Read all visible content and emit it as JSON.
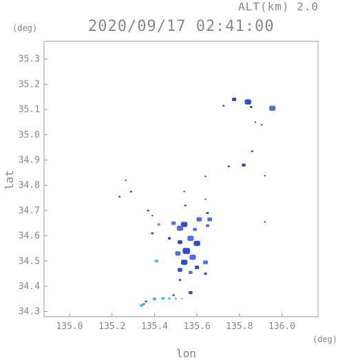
{
  "header": {
    "altitude": "ALT(km) 2.0",
    "timestamp": "2020/09/17 02:41:00"
  },
  "axes": {
    "y_unit": "(deg)",
    "x_unit": "(deg)",
    "x_title": "lon",
    "y_title": "lat"
  },
  "colors": {
    "axis": "#999999",
    "text": "#888888",
    "echo_strong": "#2a4bdb",
    "echo_medium": "#4b6ef5",
    "echo_light": "#6f8cff",
    "echo_cyan": "#28c8f0"
  },
  "chart_data": {
    "type": "scatter",
    "title": "2020/09/17 02:41:00",
    "xlabel": "lon",
    "ylabel": "lat",
    "xlim": [
      134.88,
      136.17
    ],
    "ylim": [
      34.28,
      35.37
    ],
    "x_ticks": [
      "135.0",
      "135.2",
      "135.4",
      "135.6",
      "135.8",
      "136.0"
    ],
    "x_tick_values": [
      135.0,
      135.2,
      135.4,
      135.6,
      135.8,
      136.0
    ],
    "y_ticks": [
      "34.3",
      "34.4",
      "34.5",
      "34.6",
      "34.7",
      "34.8",
      "34.9",
      "35.0",
      "35.1",
      "35.2",
      "35.3"
    ],
    "y_tick_values": [
      34.3,
      34.4,
      34.5,
      34.6,
      34.7,
      34.8,
      34.9,
      35.0,
      35.1,
      35.2,
      35.3
    ],
    "grid": false,
    "echo_cells": [
      {
        "lon": 135.775,
        "lat": 35.14,
        "size": 0.02,
        "color": "echo_strong"
      },
      {
        "lon": 135.84,
        "lat": 35.13,
        "size": 0.03,
        "color": "echo_strong"
      },
      {
        "lon": 135.955,
        "lat": 35.105,
        "size": 0.03,
        "color": "echo_medium"
      },
      {
        "lon": 135.855,
        "lat": 35.11,
        "size": 0.012,
        "color": "echo_strong"
      },
      {
        "lon": 135.725,
        "lat": 35.115,
        "size": 0.01,
        "color": "echo_strong"
      },
      {
        "lon": 135.875,
        "lat": 35.05,
        "size": 0.008,
        "color": "echo_strong"
      },
      {
        "lon": 135.905,
        "lat": 35.04,
        "size": 0.008,
        "color": "echo_strong"
      },
      {
        "lon": 135.86,
        "lat": 34.935,
        "size": 0.01,
        "color": "echo_strong"
      },
      {
        "lon": 135.82,
        "lat": 34.88,
        "size": 0.018,
        "color": "echo_strong"
      },
      {
        "lon": 135.75,
        "lat": 34.875,
        "size": 0.01,
        "color": "echo_strong"
      },
      {
        "lon": 135.92,
        "lat": 34.838,
        "size": 0.008,
        "color": "echo_strong"
      },
      {
        "lon": 135.64,
        "lat": 34.835,
        "size": 0.008,
        "color": "echo_strong"
      },
      {
        "lon": 135.265,
        "lat": 34.82,
        "size": 0.006,
        "color": "echo_strong"
      },
      {
        "lon": 135.29,
        "lat": 34.775,
        "size": 0.01,
        "color": "echo_strong"
      },
      {
        "lon": 135.235,
        "lat": 34.755,
        "size": 0.01,
        "color": "echo_strong"
      },
      {
        "lon": 135.54,
        "lat": 34.775,
        "size": 0.006,
        "color": "echo_strong"
      },
      {
        "lon": 135.64,
        "lat": 34.745,
        "size": 0.006,
        "color": "echo_strong"
      },
      {
        "lon": 135.545,
        "lat": 34.72,
        "size": 0.01,
        "color": "echo_strong"
      },
      {
        "lon": 135.37,
        "lat": 34.7,
        "size": 0.01,
        "color": "echo_strong"
      },
      {
        "lon": 135.65,
        "lat": 34.69,
        "size": 0.012,
        "color": "echo_strong"
      },
      {
        "lon": 135.39,
        "lat": 34.68,
        "size": 0.008,
        "color": "echo_strong"
      },
      {
        "lon": 135.61,
        "lat": 34.665,
        "size": 0.025,
        "color": "echo_medium"
      },
      {
        "lon": 135.66,
        "lat": 34.665,
        "size": 0.022,
        "color": "echo_medium"
      },
      {
        "lon": 135.49,
        "lat": 34.65,
        "size": 0.02,
        "color": "echo_medium"
      },
      {
        "lon": 135.54,
        "lat": 34.645,
        "size": 0.03,
        "color": "echo_strong"
      },
      {
        "lon": 135.52,
        "lat": 34.63,
        "size": 0.03,
        "color": "echo_medium"
      },
      {
        "lon": 135.59,
        "lat": 34.625,
        "size": 0.018,
        "color": "echo_medium"
      },
      {
        "lon": 135.42,
        "lat": 34.645,
        "size": 0.014,
        "color": "echo_light"
      },
      {
        "lon": 135.65,
        "lat": 34.64,
        "size": 0.016,
        "color": "echo_medium"
      },
      {
        "lon": 135.39,
        "lat": 34.61,
        "size": 0.012,
        "color": "echo_strong"
      },
      {
        "lon": 135.47,
        "lat": 34.59,
        "size": 0.014,
        "color": "echo_strong"
      },
      {
        "lon": 135.57,
        "lat": 34.59,
        "size": 0.03,
        "color": "echo_medium"
      },
      {
        "lon": 135.6,
        "lat": 34.57,
        "size": 0.03,
        "color": "echo_strong"
      },
      {
        "lon": 135.52,
        "lat": 34.575,
        "size": 0.022,
        "color": "echo_strong"
      },
      {
        "lon": 135.55,
        "lat": 34.54,
        "size": 0.035,
        "color": "echo_strong"
      },
      {
        "lon": 135.51,
        "lat": 34.53,
        "size": 0.025,
        "color": "echo_medium"
      },
      {
        "lon": 135.58,
        "lat": 34.515,
        "size": 0.03,
        "color": "echo_medium"
      },
      {
        "lon": 135.54,
        "lat": 34.495,
        "size": 0.03,
        "color": "echo_strong"
      },
      {
        "lon": 135.64,
        "lat": 34.495,
        "size": 0.022,
        "color": "echo_medium"
      },
      {
        "lon": 135.6,
        "lat": 34.475,
        "size": 0.02,
        "color": "echo_strong"
      },
      {
        "lon": 135.52,
        "lat": 34.465,
        "size": 0.022,
        "color": "echo_strong"
      },
      {
        "lon": 135.57,
        "lat": 34.455,
        "size": 0.018,
        "color": "echo_medium"
      },
      {
        "lon": 135.41,
        "lat": 34.5,
        "size": 0.016,
        "color": "echo_cyan"
      },
      {
        "lon": 135.64,
        "lat": 34.45,
        "size": 0.014,
        "color": "echo_strong"
      },
      {
        "lon": 135.52,
        "lat": 34.425,
        "size": 0.012,
        "color": "echo_strong"
      },
      {
        "lon": 135.57,
        "lat": 34.375,
        "size": 0.018,
        "color": "echo_strong"
      },
      {
        "lon": 135.49,
        "lat": 34.365,
        "size": 0.012,
        "color": "echo_medium"
      },
      {
        "lon": 135.4,
        "lat": 34.35,
        "size": 0.016,
        "color": "echo_cyan"
      },
      {
        "lon": 135.44,
        "lat": 34.352,
        "size": 0.016,
        "color": "echo_cyan"
      },
      {
        "lon": 135.47,
        "lat": 34.352,
        "size": 0.012,
        "color": "echo_cyan"
      },
      {
        "lon": 135.5,
        "lat": 34.352,
        "size": 0.01,
        "color": "echo_cyan"
      },
      {
        "lon": 135.53,
        "lat": 34.352,
        "size": 0.008,
        "color": "echo_cyan"
      },
      {
        "lon": 135.36,
        "lat": 34.34,
        "size": 0.012,
        "color": "echo_medium"
      },
      {
        "lon": 135.34,
        "lat": 34.325,
        "size": 0.016,
        "color": "echo_cyan"
      },
      {
        "lon": 135.35,
        "lat": 34.33,
        "size": 0.01,
        "color": "echo_medium"
      },
      {
        "lon": 135.92,
        "lat": 34.655,
        "size": 0.004,
        "color": "echo_strong"
      }
    ]
  }
}
